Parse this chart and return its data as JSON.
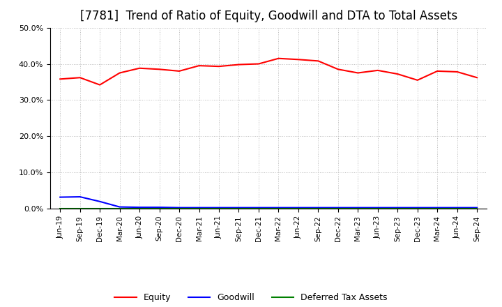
{
  "title": "[7781]  Trend of Ratio of Equity, Goodwill and DTA to Total Assets",
  "x_labels": [
    "Jun-19",
    "Sep-19",
    "Dec-19",
    "Mar-20",
    "Jun-20",
    "Sep-20",
    "Dec-20",
    "Mar-21",
    "Jun-21",
    "Sep-21",
    "Dec-21",
    "Mar-22",
    "Jun-22",
    "Sep-22",
    "Dec-22",
    "Mar-23",
    "Jun-23",
    "Sep-23",
    "Dec-23",
    "Mar-24",
    "Jun-24",
    "Sep-24"
  ],
  "equity": [
    35.8,
    36.2,
    34.2,
    37.5,
    38.8,
    38.5,
    38.0,
    39.5,
    39.3,
    39.8,
    40.0,
    41.5,
    41.2,
    40.8,
    38.5,
    37.5,
    38.2,
    37.2,
    35.5,
    38.0,
    37.8,
    36.2
  ],
  "goodwill": [
    3.2,
    3.3,
    2.0,
    0.5,
    0.4,
    0.4,
    0.3,
    0.3,
    0.3,
    0.3,
    0.3,
    0.3,
    0.3,
    0.3,
    0.3,
    0.3,
    0.3,
    0.3,
    0.3,
    0.3,
    0.3,
    0.3
  ],
  "dta": [
    0.1,
    0.1,
    0.1,
    0.1,
    0.1,
    0.1,
    0.1,
    0.1,
    0.1,
    0.1,
    0.1,
    0.1,
    0.1,
    0.1,
    0.1,
    0.1,
    0.1,
    0.1,
    0.1,
    0.1,
    0.1,
    0.1
  ],
  "equity_color": "#FF0000",
  "goodwill_color": "#0000FF",
  "dta_color": "#008000",
  "ylim": [
    0,
    50
  ],
  "yticks": [
    0,
    10,
    20,
    30,
    40,
    50
  ],
  "bg_color": "#FFFFFF",
  "plot_bg_color": "#FFFFFF",
  "grid_color": "#BBBBBB",
  "title_fontsize": 12,
  "legend_labels": [
    "Equity",
    "Goodwill",
    "Deferred Tax Assets"
  ]
}
